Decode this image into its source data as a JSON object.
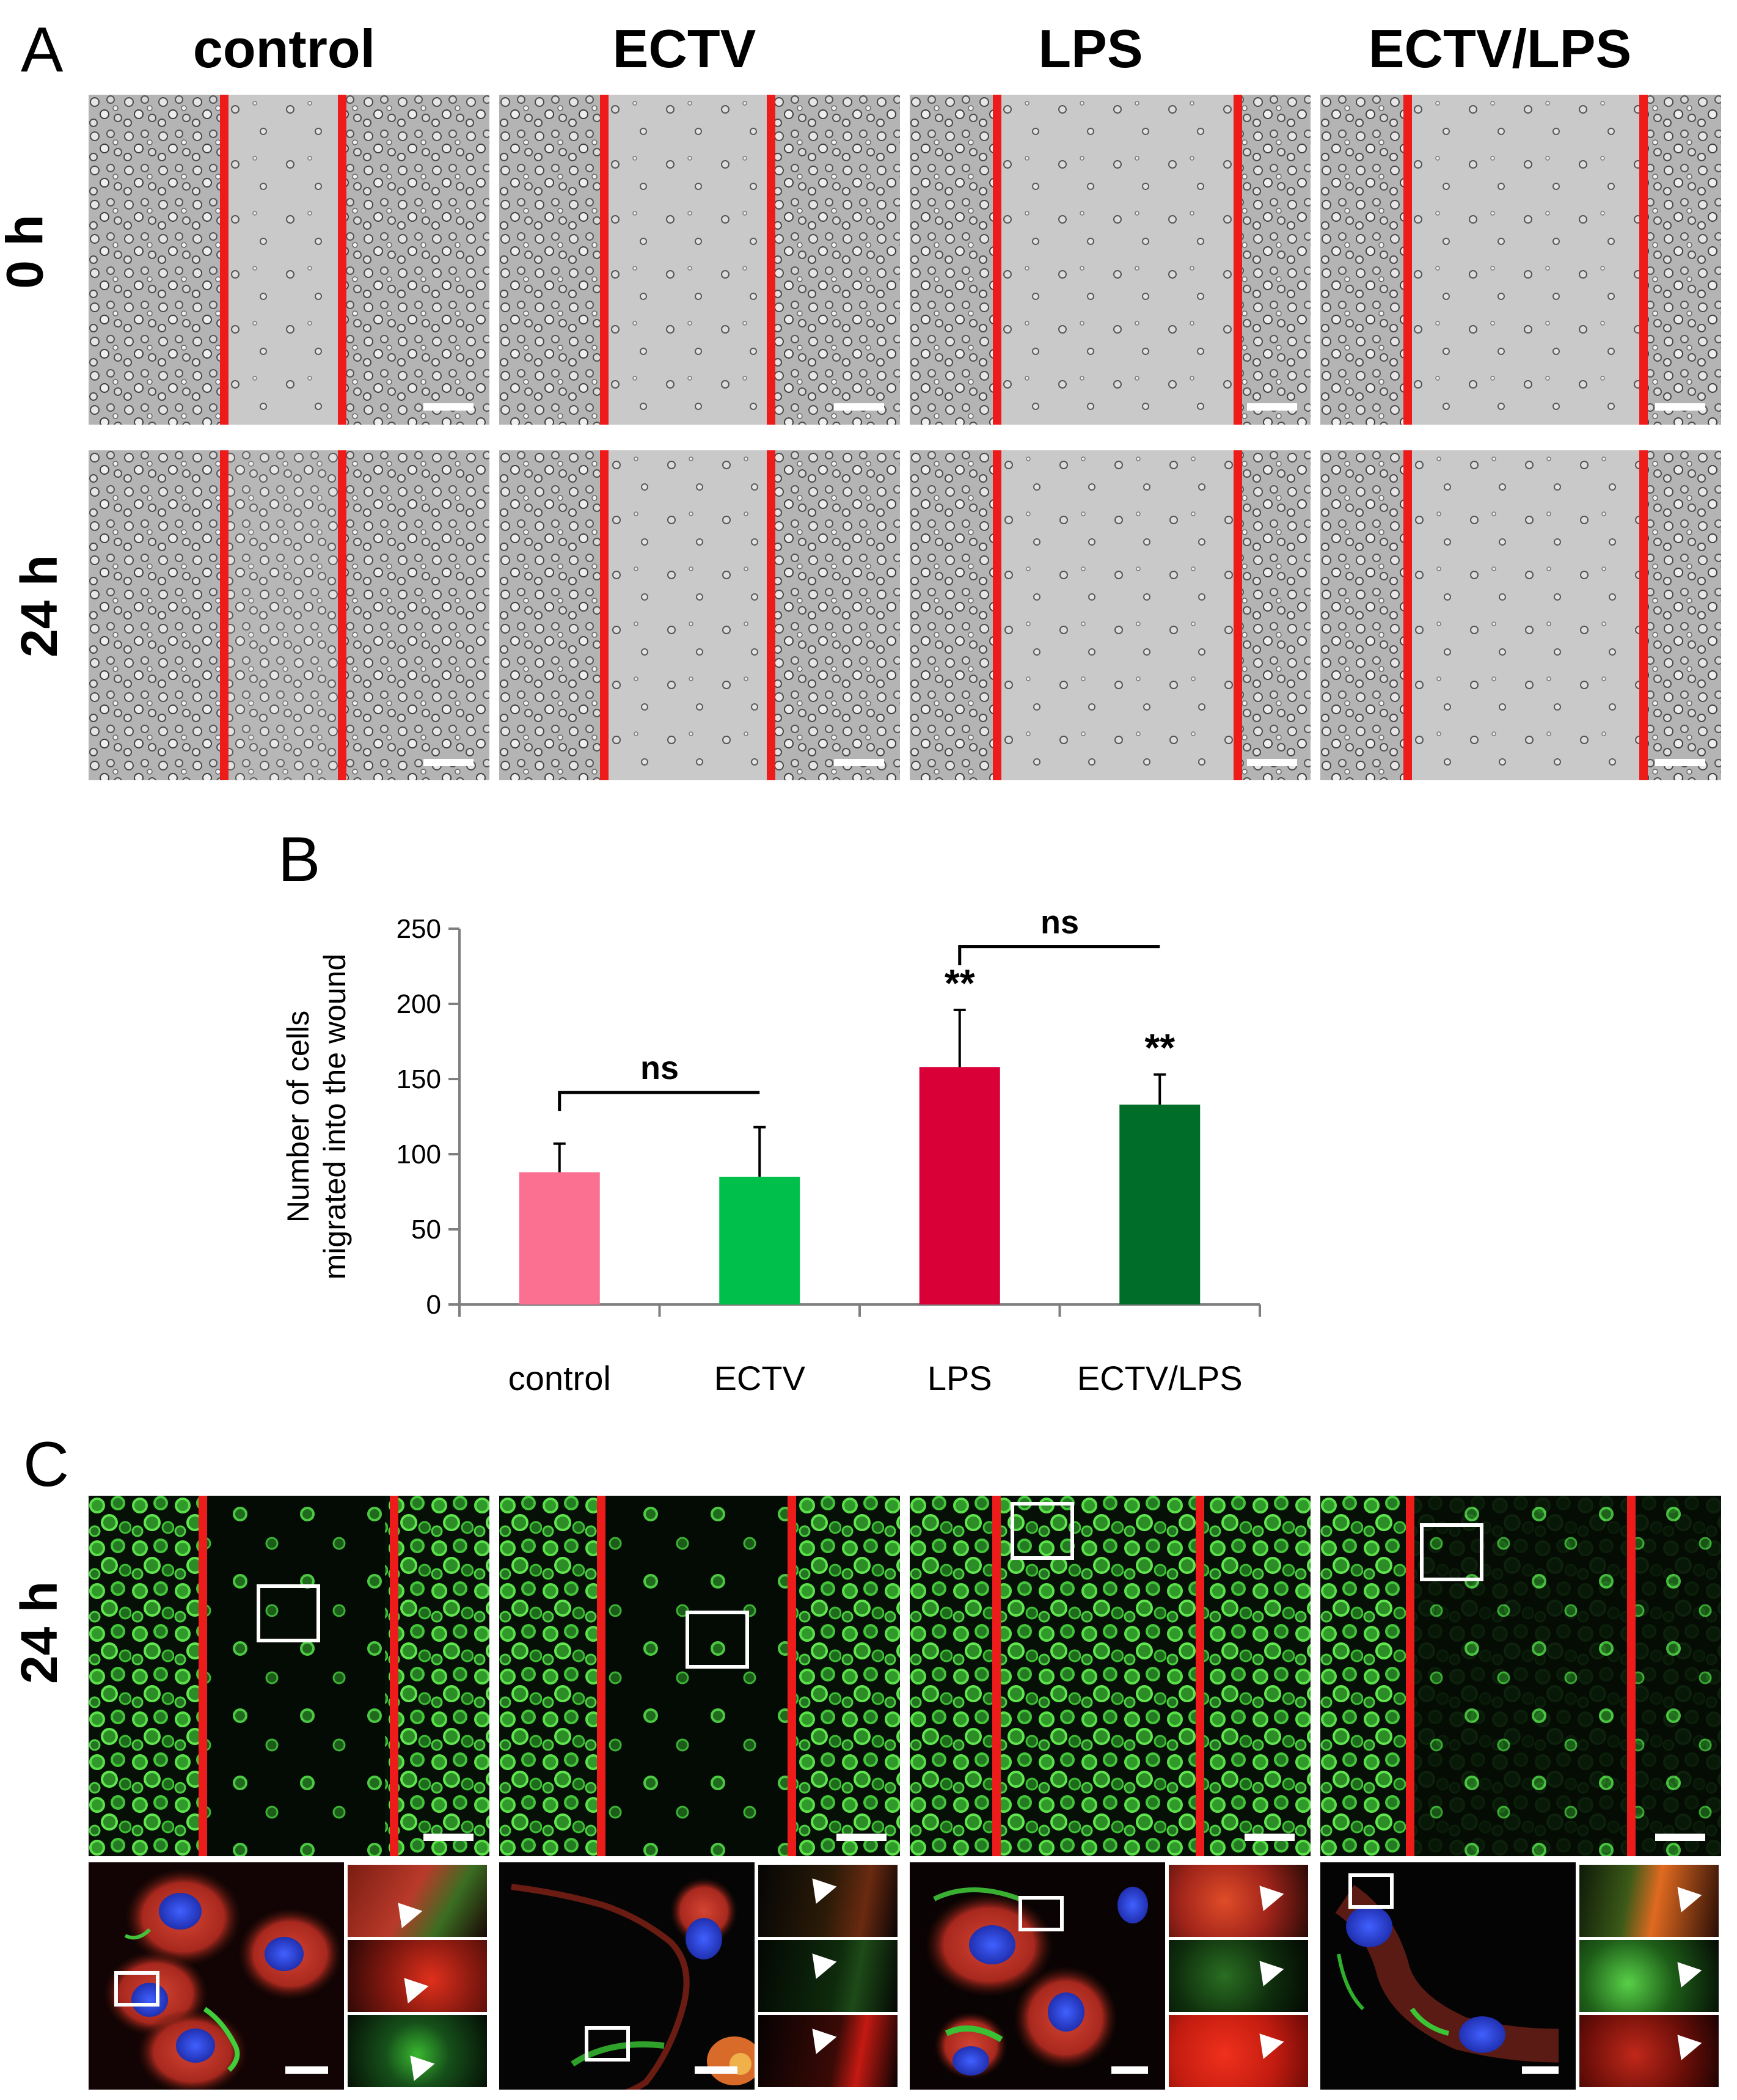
{
  "panel_a": {
    "letter": "A",
    "columns": [
      "control",
      "ECTV",
      "LPS",
      "ECTV/LPS"
    ],
    "rows": [
      "0 h",
      "24 h"
    ]
  },
  "panel_b": {
    "letter": "B"
  },
  "panel_c": {
    "letter": "C",
    "row_label": "24 h"
  },
  "colors": {
    "wound_line": "#ee1b1b",
    "control": "#fb7090",
    "ECTV": "#00c04b",
    "LPS": "#d90038",
    "ECTV/LPS": "#006e28"
  },
  "chart_data": {
    "type": "bar",
    "title": "",
    "xlabel": "",
    "ylabel": "Number of cells\nmigrated into the wound",
    "categories": [
      "control",
      "ECTV",
      "LPS",
      "ECTV/LPS"
    ],
    "values": [
      88,
      85,
      158,
      133
    ],
    "errors": [
      19,
      33,
      38,
      20
    ],
    "ylim": [
      0,
      250
    ],
    "yticks": [
      0,
      50,
      100,
      150,
      200,
      250
    ],
    "significance": [
      "",
      "",
      "**",
      "**"
    ],
    "brackets": [
      {
        "from": "control",
        "to": "ECTV",
        "label": "ns"
      },
      {
        "from": "LPS",
        "to": "ECTV/LPS",
        "label": "ns"
      }
    ],
    "grid": false,
    "legend": "none"
  }
}
